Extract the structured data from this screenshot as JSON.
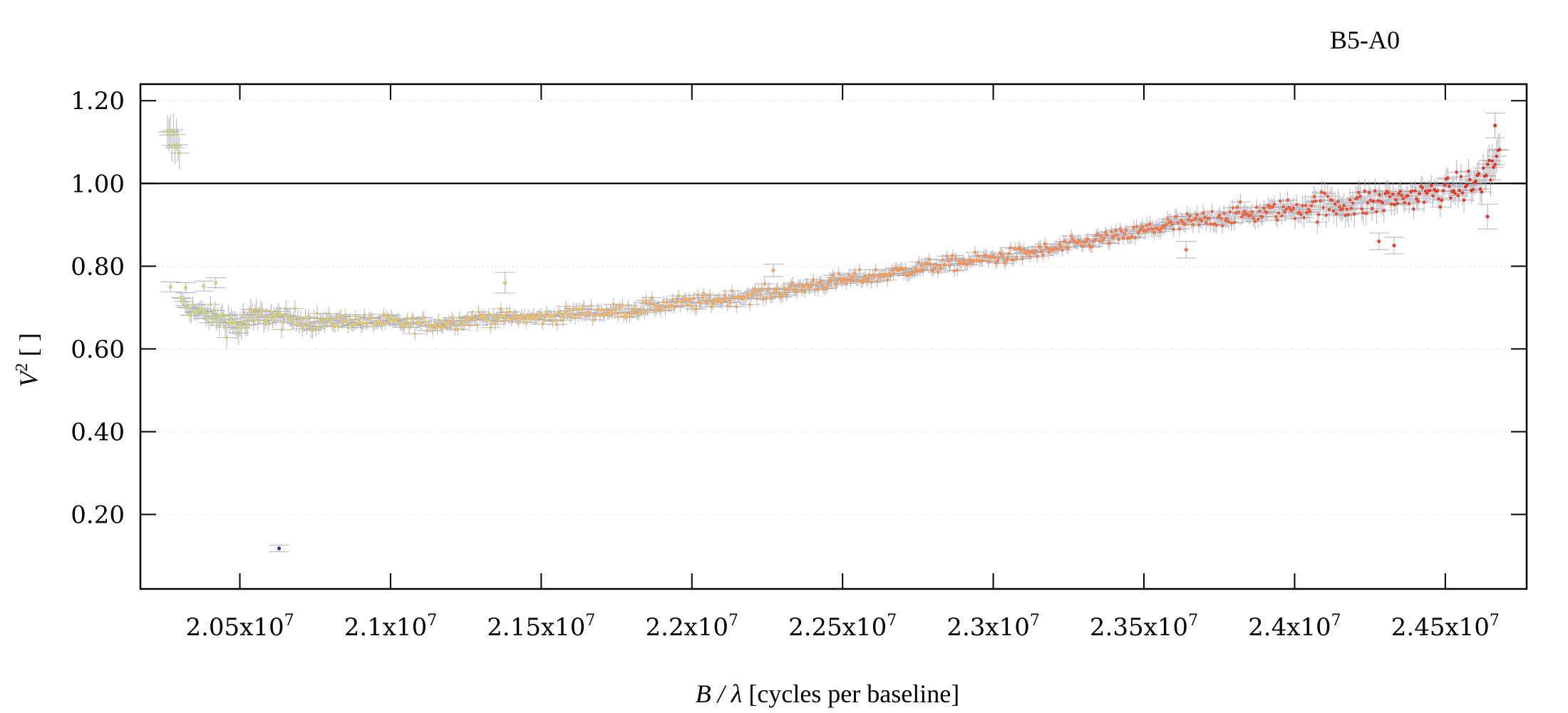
{
  "chart_data": {
    "type": "scatter",
    "title": "B5-A0",
    "xlabel": {
      "italic": "B / λ",
      "rest": " [cycles per baseline]"
    },
    "ylabel": {
      "base": "V",
      "sup": "2",
      "rest": " [ ]"
    },
    "xlim": [
      20170000,
      24770000
    ],
    "ylim": [
      0.02,
      1.24
    ],
    "x_ticks": [
      {
        "value": 20500000,
        "mantissa": "2.05",
        "exp": "7"
      },
      {
        "value": 21000000,
        "mantissa": "2.1",
        "exp": "7"
      },
      {
        "value": 21500000,
        "mantissa": "2.15",
        "exp": "7"
      },
      {
        "value": 22000000,
        "mantissa": "2.2",
        "exp": "7"
      },
      {
        "value": 22500000,
        "mantissa": "2.25",
        "exp": "7"
      },
      {
        "value": 23000000,
        "mantissa": "2.3",
        "exp": "7"
      },
      {
        "value": 23500000,
        "mantissa": "2.35",
        "exp": "7"
      },
      {
        "value": 24000000,
        "mantissa": "2.4",
        "exp": "7"
      },
      {
        "value": 24500000,
        "mantissa": "2.45",
        "exp": "7"
      }
    ],
    "y_ticks": [
      {
        "value": 0.2,
        "label": "0.20"
      },
      {
        "value": 0.4,
        "label": "0.40"
      },
      {
        "value": 0.6,
        "label": "0.60"
      },
      {
        "value": 0.8,
        "label": "0.80"
      },
      {
        "value": 1.0,
        "label": "1.00"
      },
      {
        "value": 1.2,
        "label": "1.20"
      }
    ],
    "reference_line_y": 1.0,
    "grid": true,
    "grid_axis": "y",
    "color_gradient": [
      "#c8d67a",
      "#f2b766",
      "#f58a52",
      "#e8281c"
    ],
    "outlier_color": "#3030c0",
    "series": [
      {
        "points": [
          [
            20300000,
            0.72,
            0.015
          ],
          [
            20350000,
            0.69,
            0.02
          ],
          [
            20400000,
            0.68,
            0.02
          ],
          [
            20450000,
            0.67,
            0.025
          ],
          [
            20500000,
            0.655,
            0.03
          ],
          [
            20550000,
            0.675,
            0.025
          ],
          [
            20600000,
            0.68,
            0.02
          ],
          [
            20650000,
            0.67,
            0.02
          ],
          [
            20700000,
            0.675,
            0.02
          ],
          [
            20750000,
            0.665,
            0.02
          ],
          [
            20800000,
            0.665,
            0.015
          ],
          [
            20850000,
            0.67,
            0.015
          ],
          [
            20900000,
            0.665,
            0.015
          ],
          [
            20950000,
            0.665,
            0.015
          ],
          [
            21000000,
            0.665,
            0.015
          ],
          [
            21050000,
            0.66,
            0.015
          ],
          [
            21100000,
            0.66,
            0.015
          ],
          [
            21150000,
            0.66,
            0.015
          ],
          [
            21200000,
            0.665,
            0.015
          ],
          [
            21250000,
            0.67,
            0.015
          ],
          [
            21300000,
            0.675,
            0.015
          ],
          [
            21350000,
            0.675,
            0.015
          ],
          [
            21400000,
            0.675,
            0.015
          ],
          [
            21450000,
            0.675,
            0.015
          ],
          [
            21500000,
            0.675,
            0.015
          ],
          [
            21550000,
            0.68,
            0.015
          ],
          [
            21600000,
            0.685,
            0.015
          ],
          [
            21650000,
            0.69,
            0.015
          ],
          [
            21700000,
            0.69,
            0.015
          ],
          [
            21750000,
            0.69,
            0.015
          ],
          [
            21800000,
            0.695,
            0.015
          ],
          [
            21850000,
            0.7,
            0.015
          ],
          [
            21900000,
            0.705,
            0.015
          ],
          [
            21950000,
            0.71,
            0.015
          ],
          [
            22000000,
            0.71,
            0.015
          ],
          [
            22050000,
            0.715,
            0.015
          ],
          [
            22100000,
            0.72,
            0.015
          ],
          [
            22150000,
            0.725,
            0.015
          ],
          [
            22200000,
            0.73,
            0.015
          ],
          [
            22250000,
            0.735,
            0.015
          ],
          [
            22300000,
            0.74,
            0.015
          ],
          [
            22350000,
            0.745,
            0.015
          ],
          [
            22400000,
            0.755,
            0.015
          ],
          [
            22450000,
            0.76,
            0.015
          ],
          [
            22500000,
            0.765,
            0.015
          ],
          [
            22550000,
            0.77,
            0.015
          ],
          [
            22600000,
            0.775,
            0.015
          ],
          [
            22650000,
            0.78,
            0.015
          ],
          [
            22700000,
            0.79,
            0.015
          ],
          [
            22750000,
            0.795,
            0.015
          ],
          [
            22800000,
            0.8,
            0.015
          ],
          [
            22850000,
            0.805,
            0.015
          ],
          [
            22900000,
            0.81,
            0.015
          ],
          [
            22950000,
            0.815,
            0.015
          ],
          [
            23000000,
            0.82,
            0.015
          ],
          [
            23050000,
            0.825,
            0.015
          ],
          [
            23100000,
            0.83,
            0.015
          ],
          [
            23150000,
            0.835,
            0.015
          ],
          [
            23200000,
            0.84,
            0.015
          ],
          [
            23250000,
            0.85,
            0.015
          ],
          [
            23300000,
            0.855,
            0.015
          ],
          [
            23350000,
            0.865,
            0.015
          ],
          [
            23400000,
            0.87,
            0.015
          ],
          [
            23450000,
            0.875,
            0.015
          ],
          [
            23500000,
            0.885,
            0.02
          ],
          [
            23550000,
            0.895,
            0.02
          ],
          [
            23600000,
            0.9,
            0.02
          ],
          [
            23650000,
            0.905,
            0.02
          ],
          [
            23700000,
            0.91,
            0.02
          ],
          [
            23750000,
            0.92,
            0.02
          ],
          [
            23800000,
            0.925,
            0.02
          ],
          [
            23850000,
            0.925,
            0.02
          ],
          [
            23900000,
            0.93,
            0.02
          ],
          [
            23950000,
            0.935,
            0.02
          ],
          [
            24000000,
            0.94,
            0.025
          ],
          [
            24050000,
            0.945,
            0.025
          ],
          [
            24100000,
            0.945,
            0.03
          ],
          [
            24150000,
            0.95,
            0.03
          ],
          [
            24200000,
            0.95,
            0.03
          ],
          [
            24250000,
            0.955,
            0.03
          ],
          [
            24300000,
            0.96,
            0.03
          ],
          [
            24350000,
            0.965,
            0.025
          ],
          [
            24400000,
            0.97,
            0.025
          ],
          [
            24450000,
            0.975,
            0.025
          ],
          [
            24500000,
            0.98,
            0.025
          ],
          [
            24550000,
            0.99,
            0.03
          ],
          [
            24600000,
            1.0,
            0.03
          ],
          [
            24650000,
            1.03,
            0.04
          ],
          [
            24670000,
            1.06,
            0.04
          ],
          [
            24680000,
            1.1,
            0.04
          ]
        ]
      }
    ],
    "outliers": [
      [
        20270000,
        0.75,
        0.012
      ],
      [
        20320000,
        0.748,
        0.012
      ],
      [
        20380000,
        0.752,
        0.012
      ],
      [
        20420000,
        0.76,
        0.012
      ],
      [
        20630000,
        0.118,
        0.008
      ],
      [
        21380000,
        0.76,
        0.025
      ],
      [
        22270000,
        0.79,
        0.015
      ],
      [
        23640000,
        0.84,
        0.02
      ],
      [
        24280000,
        0.86,
        0.02
      ],
      [
        24330000,
        0.85,
        0.02
      ],
      [
        24640000,
        0.92,
        0.03
      ],
      [
        24665000,
        1.14,
        0.03
      ]
    ]
  }
}
